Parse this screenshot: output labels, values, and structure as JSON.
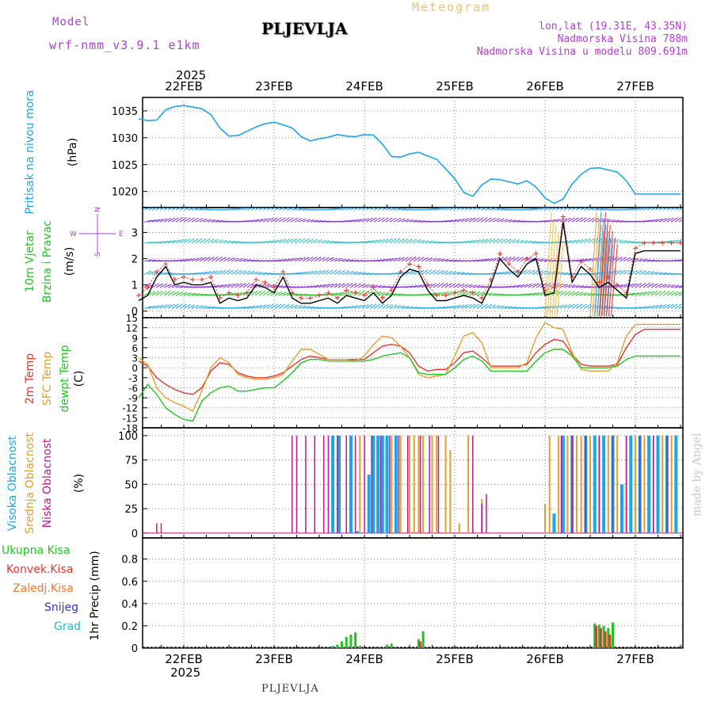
{
  "header": {
    "model_label": "Model",
    "model_name": "wrf-nmm_v3.9.1  e1km",
    "station": "PLJEVLJA",
    "meteogram_label": "Meteogram",
    "lonlat": "lon,lat (19.31E, 43.35N)",
    "elevation": "Nadmorska Visina 788m",
    "model_elevation": "Nadmorska Visina u modelu 809.691m",
    "year": "2025",
    "footer_station": "PLJEVLJA",
    "watermark": "made by Angel"
  },
  "colors": {
    "pressure": "#1aa6e8",
    "wind_speed": "#000000",
    "gust": "#e8342c",
    "t2m": "#e8342c",
    "tsfc": "#e0a030",
    "dewpoint": "#22c422",
    "high_cloud": "#1aa6e8",
    "mid_cloud": "#e0a030",
    "low_cloud": "#c0188c",
    "precip_total": "#22c422",
    "precip_conv": "#e8342c",
    "precip_frozen": "#f07830",
    "snow": "#3030e0",
    "hail": "#20c0c0",
    "label_purple": "#b040d0",
    "watermark": "#c8c8c8"
  },
  "chart_data": [
    {
      "type": "line",
      "id": "pressure",
      "ylabel": [
        "Pritisak na nivou mora",
        "(hPa)"
      ],
      "xticks": [
        "22FEB",
        "23FEB",
        "24FEB",
        "25FEB",
        "26FEB",
        "27FEB"
      ],
      "ylim": [
        1017,
        1037.5
      ],
      "yticks": [
        1020,
        1025,
        1030,
        1035
      ],
      "grid": true,
      "x": [
        -0.5,
        -0.4,
        -0.3,
        -0.2,
        -0.1,
        0,
        0.1,
        0.2,
        0.3,
        0.4,
        0.5,
        0.6,
        0.7,
        0.8,
        0.9,
        1,
        1.1,
        1.2,
        1.3,
        1.4,
        1.5,
        1.6,
        1.7,
        1.8,
        1.9,
        2,
        2.1,
        2.2,
        2.3,
        2.4,
        2.5,
        2.6,
        2.7,
        2.8,
        2.9,
        3,
        3.1,
        3.2,
        3.3,
        3.4,
        3.5,
        3.6,
        3.7,
        3.8,
        3.9,
        4,
        4.1,
        4.2,
        4.3,
        4.4,
        4.5,
        4.6,
        4.7,
        4.8,
        4.9,
        5,
        5.1,
        5.2,
        5.3,
        5.4,
        5.5
      ],
      "values": [
        1033.5,
        1033.2,
        1033.3,
        1035.2,
        1035.8,
        1036.0,
        1035.7,
        1035.4,
        1034.3,
        1031.8,
        1030.3,
        1030.4,
        1031.2,
        1032.0,
        1032.6,
        1032.9,
        1032.4,
        1031.8,
        1030.2,
        1029.4,
        1029.8,
        1030.1,
        1030.6,
        1030.3,
        1030.2,
        1030.6,
        1030.5,
        1028.8,
        1026.5,
        1026.4,
        1027.0,
        1027.3,
        1026.6,
        1026.0,
        1024.2,
        1022.4,
        1019.8,
        1019.1,
        1021.2,
        1022.3,
        1022.2,
        1021.8,
        1021.4,
        1022.0,
        1020.8,
        1018.8,
        1017.8,
        1018.6,
        1021.4,
        1023.2,
        1024.3,
        1024.4,
        1024.0,
        1023.6,
        1022.0,
        1019.5,
        1019.5,
        1019.5,
        1019.5,
        1019.5,
        1019.5
      ]
    },
    {
      "type": "line",
      "id": "wind",
      "ylabel": [
        "10m Vjetar",
        "Brzina i Pravac",
        "(m/s)"
      ],
      "compass": [
        "W",
        "E",
        "N",
        "S"
      ],
      "ylim": [
        -0.25,
        3.95
      ],
      "yticks": [
        0,
        1,
        2,
        3
      ],
      "grid": true,
      "x": [
        -0.5,
        -0.4,
        -0.3,
        -0.2,
        -0.1,
        0,
        0.1,
        0.2,
        0.3,
        0.4,
        0.5,
        0.6,
        0.7,
        0.8,
        0.9,
        1,
        1.1,
        1.2,
        1.3,
        1.4,
        1.5,
        1.6,
        1.7,
        1.8,
        1.9,
        2,
        2.1,
        2.2,
        2.3,
        2.4,
        2.5,
        2.6,
        2.7,
        2.8,
        2.9,
        3,
        3.1,
        3.2,
        3.3,
        3.4,
        3.5,
        3.6,
        3.7,
        3.8,
        3.9,
        4,
        4.1,
        4.2,
        4.3,
        4.4,
        4.5,
        4.6,
        4.7,
        4.8,
        4.9,
        5,
        5.1,
        5.2,
        5.3,
        5.4,
        5.5
      ],
      "series": [
        {
          "values": [
            0.4,
            0.6,
            1.3,
            1.7,
            1.0,
            1.1,
            1.0,
            1.0,
            1.1,
            0.3,
            0.5,
            0.4,
            0.5,
            1.0,
            0.9,
            0.7,
            1.3,
            0.5,
            0.3,
            0.3,
            0.4,
            0.5,
            0.3,
            0.6,
            0.5,
            0.4,
            0.7,
            0.3,
            0.6,
            1.3,
            1.6,
            1.5,
            0.8,
            0.4,
            0.4,
            0.5,
            0.6,
            0.5,
            0.3,
            1.0,
            2.0,
            1.6,
            1.3,
            1.8,
            2.0,
            0.6,
            0.7,
            3.4,
            1.1,
            1.7,
            1.4,
            0.9,
            1.1,
            0.8,
            0.5,
            2.2,
            2.3,
            2.3,
            2.3,
            2.3,
            2.3
          ]
        },
        {
          "values": [
            0.6,
            0.9,
            1.5,
            1.8,
            1.2,
            1.3,
            1.2,
            1.2,
            1.3,
            0.5,
            0.7,
            0.6,
            0.7,
            1.2,
            1.1,
            0.9,
            1.5,
            0.7,
            0.5,
            0.5,
            0.6,
            0.7,
            0.5,
            0.8,
            0.7,
            0.6,
            0.9,
            0.5,
            0.8,
            1.5,
            1.8,
            1.7,
            1.0,
            0.6,
            0.6,
            0.7,
            0.8,
            0.7,
            0.5,
            1.2,
            2.2,
            1.8,
            1.5,
            2.0,
            2.2,
            0.8,
            0.9,
            3.6,
            1.3,
            1.9,
            1.6,
            1.1,
            1.3,
            1.0,
            0.7,
            2.4,
            2.6,
            2.6,
            2.6,
            2.6,
            2.6
          ]
        }
      ]
    },
    {
      "type": "line",
      "id": "temperature",
      "ylabel": [
        "2m Temp",
        "SFC Temp",
        "dewpt Temp",
        "(C)"
      ],
      "ylim": [
        -18,
        15
      ],
      "yticks": [
        -18,
        -15,
        -12,
        -9,
        -6,
        -3,
        0,
        3,
        6,
        9,
        12,
        15
      ],
      "grid": true,
      "x": [
        -0.5,
        -0.4,
        -0.3,
        -0.2,
        -0.1,
        0,
        0.1,
        0.2,
        0.3,
        0.4,
        0.5,
        0.6,
        0.7,
        0.8,
        0.9,
        1,
        1.1,
        1.2,
        1.3,
        1.4,
        1.5,
        1.6,
        1.7,
        1.8,
        1.9,
        2,
        2.1,
        2.2,
        2.3,
        2.4,
        2.5,
        2.6,
        2.7,
        2.8,
        2.9,
        3,
        3.1,
        3.2,
        3.3,
        3.4,
        3.5,
        3.6,
        3.7,
        3.8,
        3.9,
        4,
        4.1,
        4.2,
        4.3,
        4.4,
        4.5,
        4.6,
        4.7,
        4.8,
        4.9,
        5,
        5.1,
        5.2,
        5.3,
        5.4,
        5.5
      ],
      "series": [
        {
          "values": [
            2.0,
            0.5,
            -3.0,
            -5.0,
            -6.5,
            -7.5,
            -8.0,
            -6.0,
            -1.0,
            1.5,
            1.0,
            -1.5,
            -2.5,
            -3.0,
            -3.0,
            -2.5,
            -1.5,
            0.5,
            2.5,
            3.5,
            3.0,
            2.5,
            2.5,
            2.5,
            2.5,
            2.5,
            4.5,
            6.5,
            7.0,
            6.5,
            4.5,
            0.5,
            -1.0,
            -0.5,
            -0.5,
            1.5,
            4.5,
            5.0,
            3.0,
            0.5,
            0.5,
            0.5,
            0.5,
            1.0,
            4.5,
            7.0,
            8.5,
            8.0,
            4.0,
            1.0,
            0.5,
            0.5,
            0.5,
            1.0,
            6.0,
            10.0,
            11.5,
            11.5,
            11.5,
            11.5,
            11.5
          ]
        },
        {
          "values": [
            3.0,
            1.0,
            -6.0,
            -9.0,
            -10.5,
            -11.5,
            -13.0,
            -7.0,
            0.0,
            3.0,
            1.5,
            -2.0,
            -3.0,
            -3.5,
            -3.5,
            -3.0,
            -2.0,
            2.0,
            5.5,
            5.5,
            4.0,
            2.5,
            2.5,
            2.5,
            2.0,
            3.5,
            7.0,
            9.5,
            9.0,
            6.5,
            3.0,
            -2.0,
            -3.0,
            -2.5,
            -2.0,
            3.5,
            9.5,
            10.5,
            7.5,
            0.0,
            0.0,
            0.0,
            0.0,
            1.5,
            9.0,
            13.5,
            12.0,
            11.5,
            4.5,
            -0.5,
            -1.0,
            -1.0,
            -1.0,
            1.5,
            9.5,
            13.0,
            13.0,
            13.0,
            13.0,
            13.0,
            13.0
          ]
        },
        {
          "values": [
            -9.0,
            -5.0,
            -8.0,
            -12.0,
            -14.0,
            -15.5,
            -16.0,
            -10.0,
            -7.5,
            -6.0,
            -5.5,
            -7.0,
            -7.0,
            -6.5,
            -6.0,
            -6.0,
            -4.0,
            -1.5,
            1.5,
            2.5,
            2.5,
            2.0,
            2.0,
            2.0,
            2.0,
            2.0,
            2.5,
            3.5,
            4.0,
            4.5,
            3.0,
            -1.5,
            -2.0,
            -2.0,
            -2.0,
            0.0,
            2.5,
            3.5,
            2.0,
            -1.0,
            -1.0,
            -1.0,
            -1.0,
            -1.0,
            2.0,
            4.5,
            5.5,
            5.5,
            3.5,
            0.0,
            0.0,
            0.0,
            0.0,
            0.5,
            2.5,
            3.5,
            3.5,
            3.5,
            3.5,
            3.5,
            3.5
          ]
        }
      ]
    },
    {
      "type": "bar",
      "id": "clouds",
      "ylabel": [
        "Visoka Oblacnost",
        "Srednja Oblacnost",
        "Niska Oblacnost",
        "(%)"
      ],
      "ylim": [
        -5,
        108
      ],
      "yticks": [
        0,
        25,
        50,
        75,
        100
      ],
      "grid": true,
      "series": [
        {
          "name": "Visoka Oblacnost",
          "x": [
            1.65,
            1.72,
            1.85,
            1.92,
            2.05,
            2.1,
            2.15,
            2.2,
            2.25,
            2.35,
            4.1,
            4.2,
            4.3,
            4.45,
            4.55,
            4.65,
            4.75,
            4.85,
            4.95,
            5.05,
            5.15,
            5.25,
            5.35,
            5.45
          ],
          "values": [
            100,
            100,
            100,
            2,
            60,
            100,
            100,
            100,
            100,
            100,
            20,
            100,
            100,
            100,
            100,
            100,
            100,
            50,
            100,
            100,
            100,
            100,
            100,
            100
          ]
        },
        {
          "name": "Srednja Oblacnost",
          "x": [
            1.95,
            2.3,
            2.4,
            2.5,
            2.55,
            2.6,
            2.65,
            2.75,
            2.8,
            2.9,
            2.95,
            3.05,
            3.15,
            3.3,
            4.0,
            4.05,
            4.15,
            4.25,
            4.35,
            4.4,
            4.5,
            4.6,
            4.7,
            4.8,
            4.9,
            5.0,
            5.1,
            5.2,
            5.3,
            5.4
          ],
          "values": [
            100,
            100,
            100,
            100,
            100,
            100,
            100,
            100,
            100,
            100,
            85,
            10,
            100,
            35,
            30,
            100,
            100,
            100,
            100,
            100,
            100,
            100,
            100,
            100,
            100,
            100,
            100,
            100,
            100,
            100
          ]
        },
        {
          "name": "Niska Oblacnost",
          "x": [
            -0.3,
            -0.25,
            1.2,
            1.25,
            1.35,
            1.45,
            1.55,
            1.6,
            1.7,
            1.8,
            1.9,
            2.0,
            2.08,
            2.18,
            2.28,
            2.38,
            2.48,
            2.62,
            2.72,
            2.82,
            3.2,
            3.3,
            3.35,
            4.18,
            4.3,
            4.45,
            4.6,
            4.75,
            4.9,
            5.05,
            5.2,
            5.35
          ],
          "values": [
            10,
            10,
            100,
            100,
            100,
            100,
            100,
            100,
            100,
            100,
            100,
            100,
            100,
            100,
            100,
            100,
            100,
            100,
            100,
            100,
            100,
            30,
            40,
            100,
            100,
            100,
            100,
            100,
            100,
            100,
            100,
            100
          ]
        }
      ]
    },
    {
      "type": "bar",
      "id": "precip",
      "ylabel": [
        "1hr Precip (mm)"
      ],
      "legend": [
        "Ukupna  Kisa",
        "Konvek.Kisa",
        "Zaledj.Kisa",
        "Snijeg",
        "Grad"
      ],
      "ylim": [
        0,
        0.99
      ],
      "yticks": [
        0,
        0.2,
        0.4,
        0.6,
        0.8
      ],
      "grid": true,
      "series": [
        {
          "name": "Ukupna  Kisa",
          "x": [
            1.65,
            1.7,
            1.75,
            1.8,
            1.85,
            1.9,
            1.95,
            2.25,
            2.3,
            2.6,
            2.65,
            4.55,
            4.6,
            4.65,
            4.7,
            4.75
          ],
          "values": [
            0.02,
            0.03,
            0.06,
            0.1,
            0.12,
            0.14,
            0.02,
            0.03,
            0.04,
            0.08,
            0.15,
            0.22,
            0.21,
            0.2,
            0.18,
            0.23
          ]
        },
        {
          "name": "Konvek.Kisa",
          "x": [
            2.6,
            4.55,
            4.6,
            4.65,
            4.7
          ],
          "values": [
            0.06,
            0.2,
            0.18,
            0.15,
            0.12
          ]
        }
      ]
    }
  ]
}
